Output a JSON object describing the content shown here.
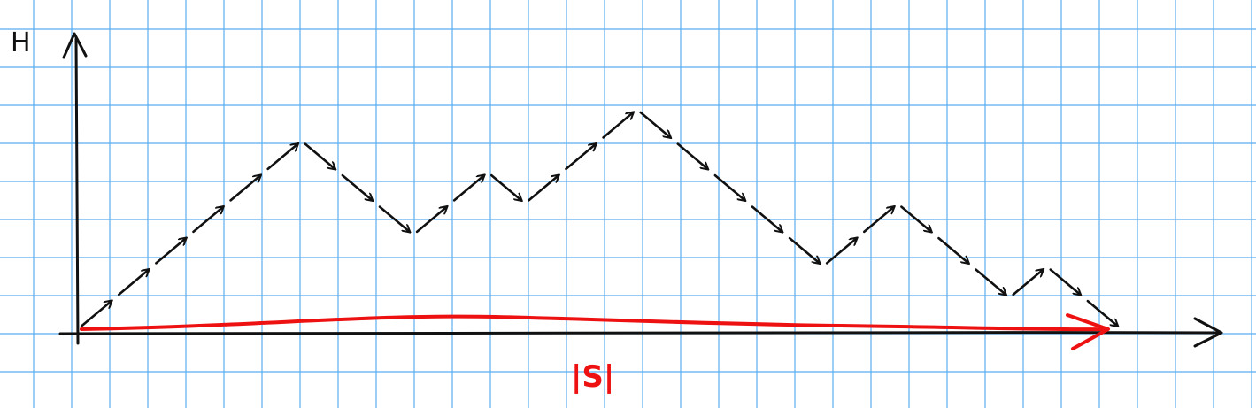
{
  "axes": {
    "y_label": "H",
    "x_label": "|S|"
  },
  "colors": {
    "grid": "#5aaef0",
    "ink": "#111111",
    "highlight": "#ee1111"
  },
  "path_vertices": [
    [
      0,
      0
    ],
    [
      1,
      1
    ],
    [
      2,
      2
    ],
    [
      3,
      3
    ],
    [
      4,
      4
    ],
    [
      5,
      5
    ],
    [
      6,
      6
    ],
    [
      7,
      5
    ],
    [
      8,
      4
    ],
    [
      9,
      3
    ],
    [
      10,
      4
    ],
    [
      11,
      5
    ],
    [
      12,
      4
    ],
    [
      13,
      5
    ],
    [
      14,
      6
    ],
    [
      15,
      7
    ],
    [
      16,
      6
    ],
    [
      17,
      5
    ],
    [
      18,
      4
    ],
    [
      19,
      3
    ],
    [
      20,
      2
    ],
    [
      21,
      3
    ],
    [
      22,
      4
    ],
    [
      23,
      3
    ],
    [
      24,
      2
    ],
    [
      25,
      1
    ],
    [
      26,
      2
    ],
    [
      27,
      1
    ],
    [
      28,
      0
    ]
  ]
}
